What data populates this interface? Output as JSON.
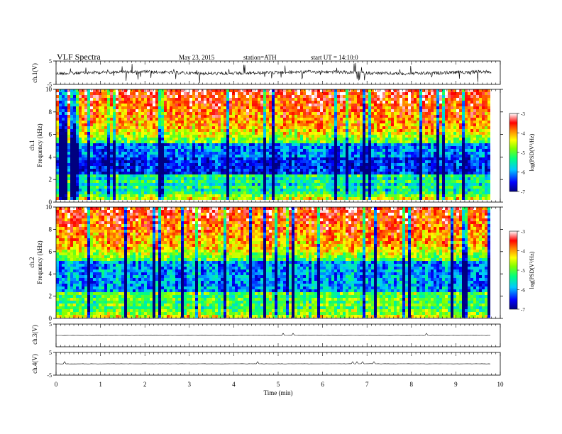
{
  "header": {
    "title": "VLF  Spectra",
    "date": "May 23, 2015",
    "station": "station=ATH",
    "start": "start  UT  =    14:10:0"
  },
  "chart_data": [
    {
      "id": "ch1-voltage",
      "type": "line",
      "ylabel": "ch.1(V)",
      "ylim": [
        -5,
        5
      ],
      "yticks": [
        "5",
        "-5"
      ],
      "xlim": [
        0,
        10
      ],
      "baseline": 0,
      "noise": "high"
    },
    {
      "id": "ch1-spectrogram",
      "type": "heatmap",
      "ylabel_lines": [
        "ch.1",
        "Frequency  (kHz)"
      ],
      "ylim": [
        0,
        10
      ],
      "yticks": [
        "0",
        "2",
        "4",
        "6",
        "8",
        "10"
      ],
      "xlim": [
        0,
        9.8
      ],
      "colorbar": {
        "label": "log(PSD(V²/Hz)",
        "range": [
          -7,
          -3
        ],
        "ticks": [
          "-3",
          "-4",
          "-5",
          "-6",
          "-7"
        ]
      }
    },
    {
      "id": "ch2-spectrogram",
      "type": "heatmap",
      "ylabel_lines": [
        "ch.2",
        "Frequency  (kHz)"
      ],
      "ylim": [
        0,
        10
      ],
      "yticks": [
        "0",
        "2",
        "4",
        "6",
        "8",
        "10"
      ],
      "xlim": [
        0,
        9.8
      ],
      "colorbar": {
        "label": "log(PSD(V²/Hz)",
        "range": [
          -7,
          -3
        ],
        "ticks": [
          "-3",
          "-4",
          "-5",
          "-6",
          "-7"
        ]
      }
    },
    {
      "id": "ch3-voltage",
      "type": "line",
      "ylabel": "ch.3(V)",
      "ylim": [
        -5,
        5
      ],
      "yticks": [
        "5"
      ],
      "xlim": [
        0,
        10
      ],
      "baseline": 0,
      "noise": "flat"
    },
    {
      "id": "ch4-voltage",
      "type": "line",
      "ylabel": "ch.4(V)",
      "ylim": [
        -5,
        5
      ],
      "yticks": [
        "5",
        "-5"
      ],
      "xlim": [
        0,
        10
      ],
      "baseline": 0,
      "noise": "flat"
    }
  ],
  "x_axis": {
    "label": "Time  (min)",
    "range": [
      0,
      10
    ],
    "ticks": [
      "0",
      "1",
      "2",
      "3",
      "4",
      "5",
      "6",
      "7",
      "8",
      "9",
      "10"
    ]
  }
}
